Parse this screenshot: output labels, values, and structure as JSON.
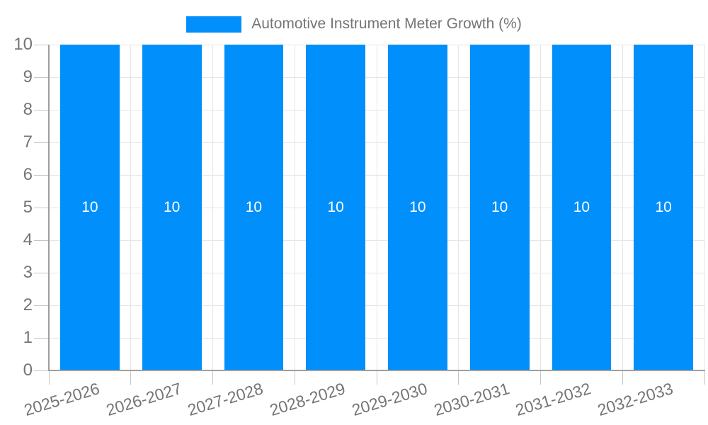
{
  "chart_data": {
    "type": "bar",
    "title": "Automotive Instrument Meter Growth (%)",
    "categories": [
      "2025-2026",
      "2026-2027",
      "2027-2028",
      "2028-2029",
      "2029-2030",
      "2030-2031",
      "2031-2032",
      "2032-2033"
    ],
    "series": [
      {
        "name": "Automotive Instrument Meter Growth (%)",
        "values": [
          10,
          10,
          10,
          10,
          10,
          10,
          10,
          10
        ]
      }
    ],
    "data_labels": [
      "10",
      "10",
      "10",
      "10",
      "10",
      "10",
      "10",
      "10"
    ],
    "xlabel": "",
    "ylabel": "",
    "ylim": [
      0,
      10
    ],
    "yticks": [
      0,
      1,
      2,
      3,
      4,
      5,
      6,
      7,
      8,
      9,
      10
    ],
    "grid": true,
    "legend_position": "top"
  },
  "legend": {
    "label": "Automotive Instrument Meter Growth (%)"
  },
  "colors": {
    "bar": "#008ffb",
    "bar_label": "#ffffff",
    "axis_line": "#9e9e9e",
    "gridline": "#e6e6e6",
    "tick": "#c6c6c6",
    "label_text": "#757575",
    "background": "#ffffff"
  }
}
